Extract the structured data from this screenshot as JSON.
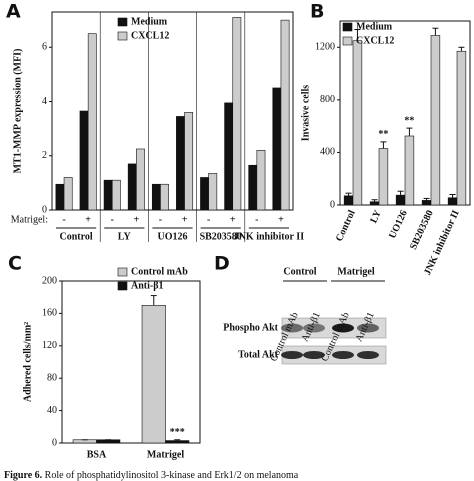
{
  "chart_data": [
    {
      "type": "bar",
      "panel": "A",
      "ylabel": "MT1-MMP expression (MFI)",
      "category_axis_label": "Matrigel:",
      "categories": [
        "-",
        "+",
        "-",
        "+",
        "-",
        "+",
        "-",
        "+",
        "-",
        "+"
      ],
      "groups": [
        "Control",
        "LY",
        "UO126",
        "SB203580",
        "JNK inhibitor II"
      ],
      "series": [
        {
          "name": "Medium",
          "color": "#111111",
          "values": [
            0.95,
            3.65,
            1.1,
            1.7,
            0.95,
            3.45,
            1.2,
            3.95,
            1.65,
            4.5
          ]
        },
        {
          "name": "CXCL12",
          "color": "#cccccc",
          "values": [
            1.2,
            6.5,
            1.1,
            2.25,
            0.95,
            3.6,
            1.35,
            7.1,
            2.2,
            7.0
          ]
        }
      ],
      "ylim": [
        0,
        7.3
      ],
      "yticks": [
        0,
        2,
        4,
        6
      ],
      "legend": "upper left"
    },
    {
      "type": "bar",
      "panel": "B",
      "ylabel": "Invasive cells",
      "categories": [
        "Control",
        "LY",
        "UO126",
        "SB203580",
        "JNK inhibitor II"
      ],
      "series": [
        {
          "name": "Medium",
          "color": "#111111",
          "values": [
            70,
            25,
            75,
            35,
            55
          ],
          "errors": [
            20,
            15,
            30,
            15,
            25
          ]
        },
        {
          "name": "CXCL12",
          "color": "#cccccc",
          "values": [
            1250,
            430,
            525,
            1290,
            1170
          ],
          "errors": [
            85,
            50,
            60,
            55,
            30
          ]
        }
      ],
      "annotations": [
        {
          "text": "**",
          "category": "LY",
          "series": "CXCL12"
        },
        {
          "text": "**",
          "category": "UO126",
          "series": "CXCL12"
        }
      ],
      "ylim": [
        0,
        1400
      ],
      "yticks": [
        0,
        400,
        800,
        1200
      ],
      "legend": "upper left"
    },
    {
      "type": "bar",
      "panel": "C",
      "ylabel": "Adhered cells/mm²",
      "categories": [
        "BSA",
        "Matrigel"
      ],
      "series": [
        {
          "name": "Control mAb",
          "color": "#cccccc",
          "values": [
            4,
            170
          ],
          "errors": [
            0,
            12
          ]
        },
        {
          "name": "Anti-β1",
          "color": "#111111",
          "values": [
            4,
            3
          ],
          "errors": [
            0,
            1
          ]
        }
      ],
      "annotations": [
        {
          "text": "***",
          "category": "Matrigel",
          "series": "Anti-β1"
        }
      ],
      "ylim": [
        0,
        200
      ],
      "yticks": [
        0,
        40,
        80,
        120,
        160,
        200
      ],
      "legend": "upper left"
    }
  ],
  "blot": {
    "panel": "D",
    "groups": [
      "Control",
      "Matrigel"
    ],
    "lanes": [
      "Control mAb",
      "Anti-β1",
      "Control mAb",
      "Anti-β1"
    ],
    "rows": [
      "Phospho Akt",
      "Total Akt"
    ]
  },
  "caption": {
    "label": "Figure 6.",
    "text": "Role of phosphatidylinositol 3-kinase and Erk1/2 on melanoma"
  }
}
